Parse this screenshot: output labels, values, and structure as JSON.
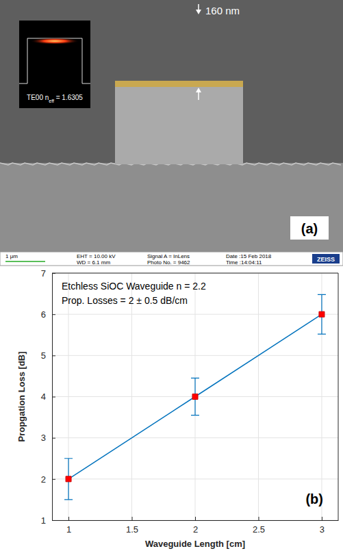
{
  "image": {
    "panel_label": "(a)",
    "thickness_label": "160 nm",
    "inset_label": {
      "text": "TE00 n",
      "subscript": "eff",
      "suffix": " = 1.6305"
    },
    "info_bar": {
      "scale": "1 μm",
      "columns": [
        [
          "EHT = 10.00 kV",
          "WD = 6.1 mm"
        ],
        [
          "Signal A = InLens",
          "Photo No. = 9462"
        ],
        [
          "Date :15 Feb 2018",
          "Time :14:04:11"
        ]
      ],
      "brand": "ZEISS"
    }
  },
  "chart_data": {
    "type": "line",
    "panel_label": "(b)",
    "annotations": [
      "Etchless SiOC Waveguide n = 2.2",
      "Prop. Losses = 2 ± 0.5 dB/cm"
    ],
    "x_label": "Waveguide Length [cm]",
    "y_label": "Propgation Loss [dB]",
    "x": [
      1,
      2,
      3
    ],
    "series": [
      {
        "color": "#0072bd",
        "marker": "square",
        "values": [
          2,
          4,
          6
        ],
        "errors": [
          0.5,
          0.45,
          0.48
        ]
      }
    ],
    "xlim": [
      0.87,
      3.13
    ],
    "xticks": [
      1,
      1.5,
      2,
      2.5,
      3
    ],
    "ylim": [
      1,
      7
    ],
    "yticks": [
      1,
      2,
      3,
      4,
      5,
      6,
      7
    ],
    "grid": true
  }
}
